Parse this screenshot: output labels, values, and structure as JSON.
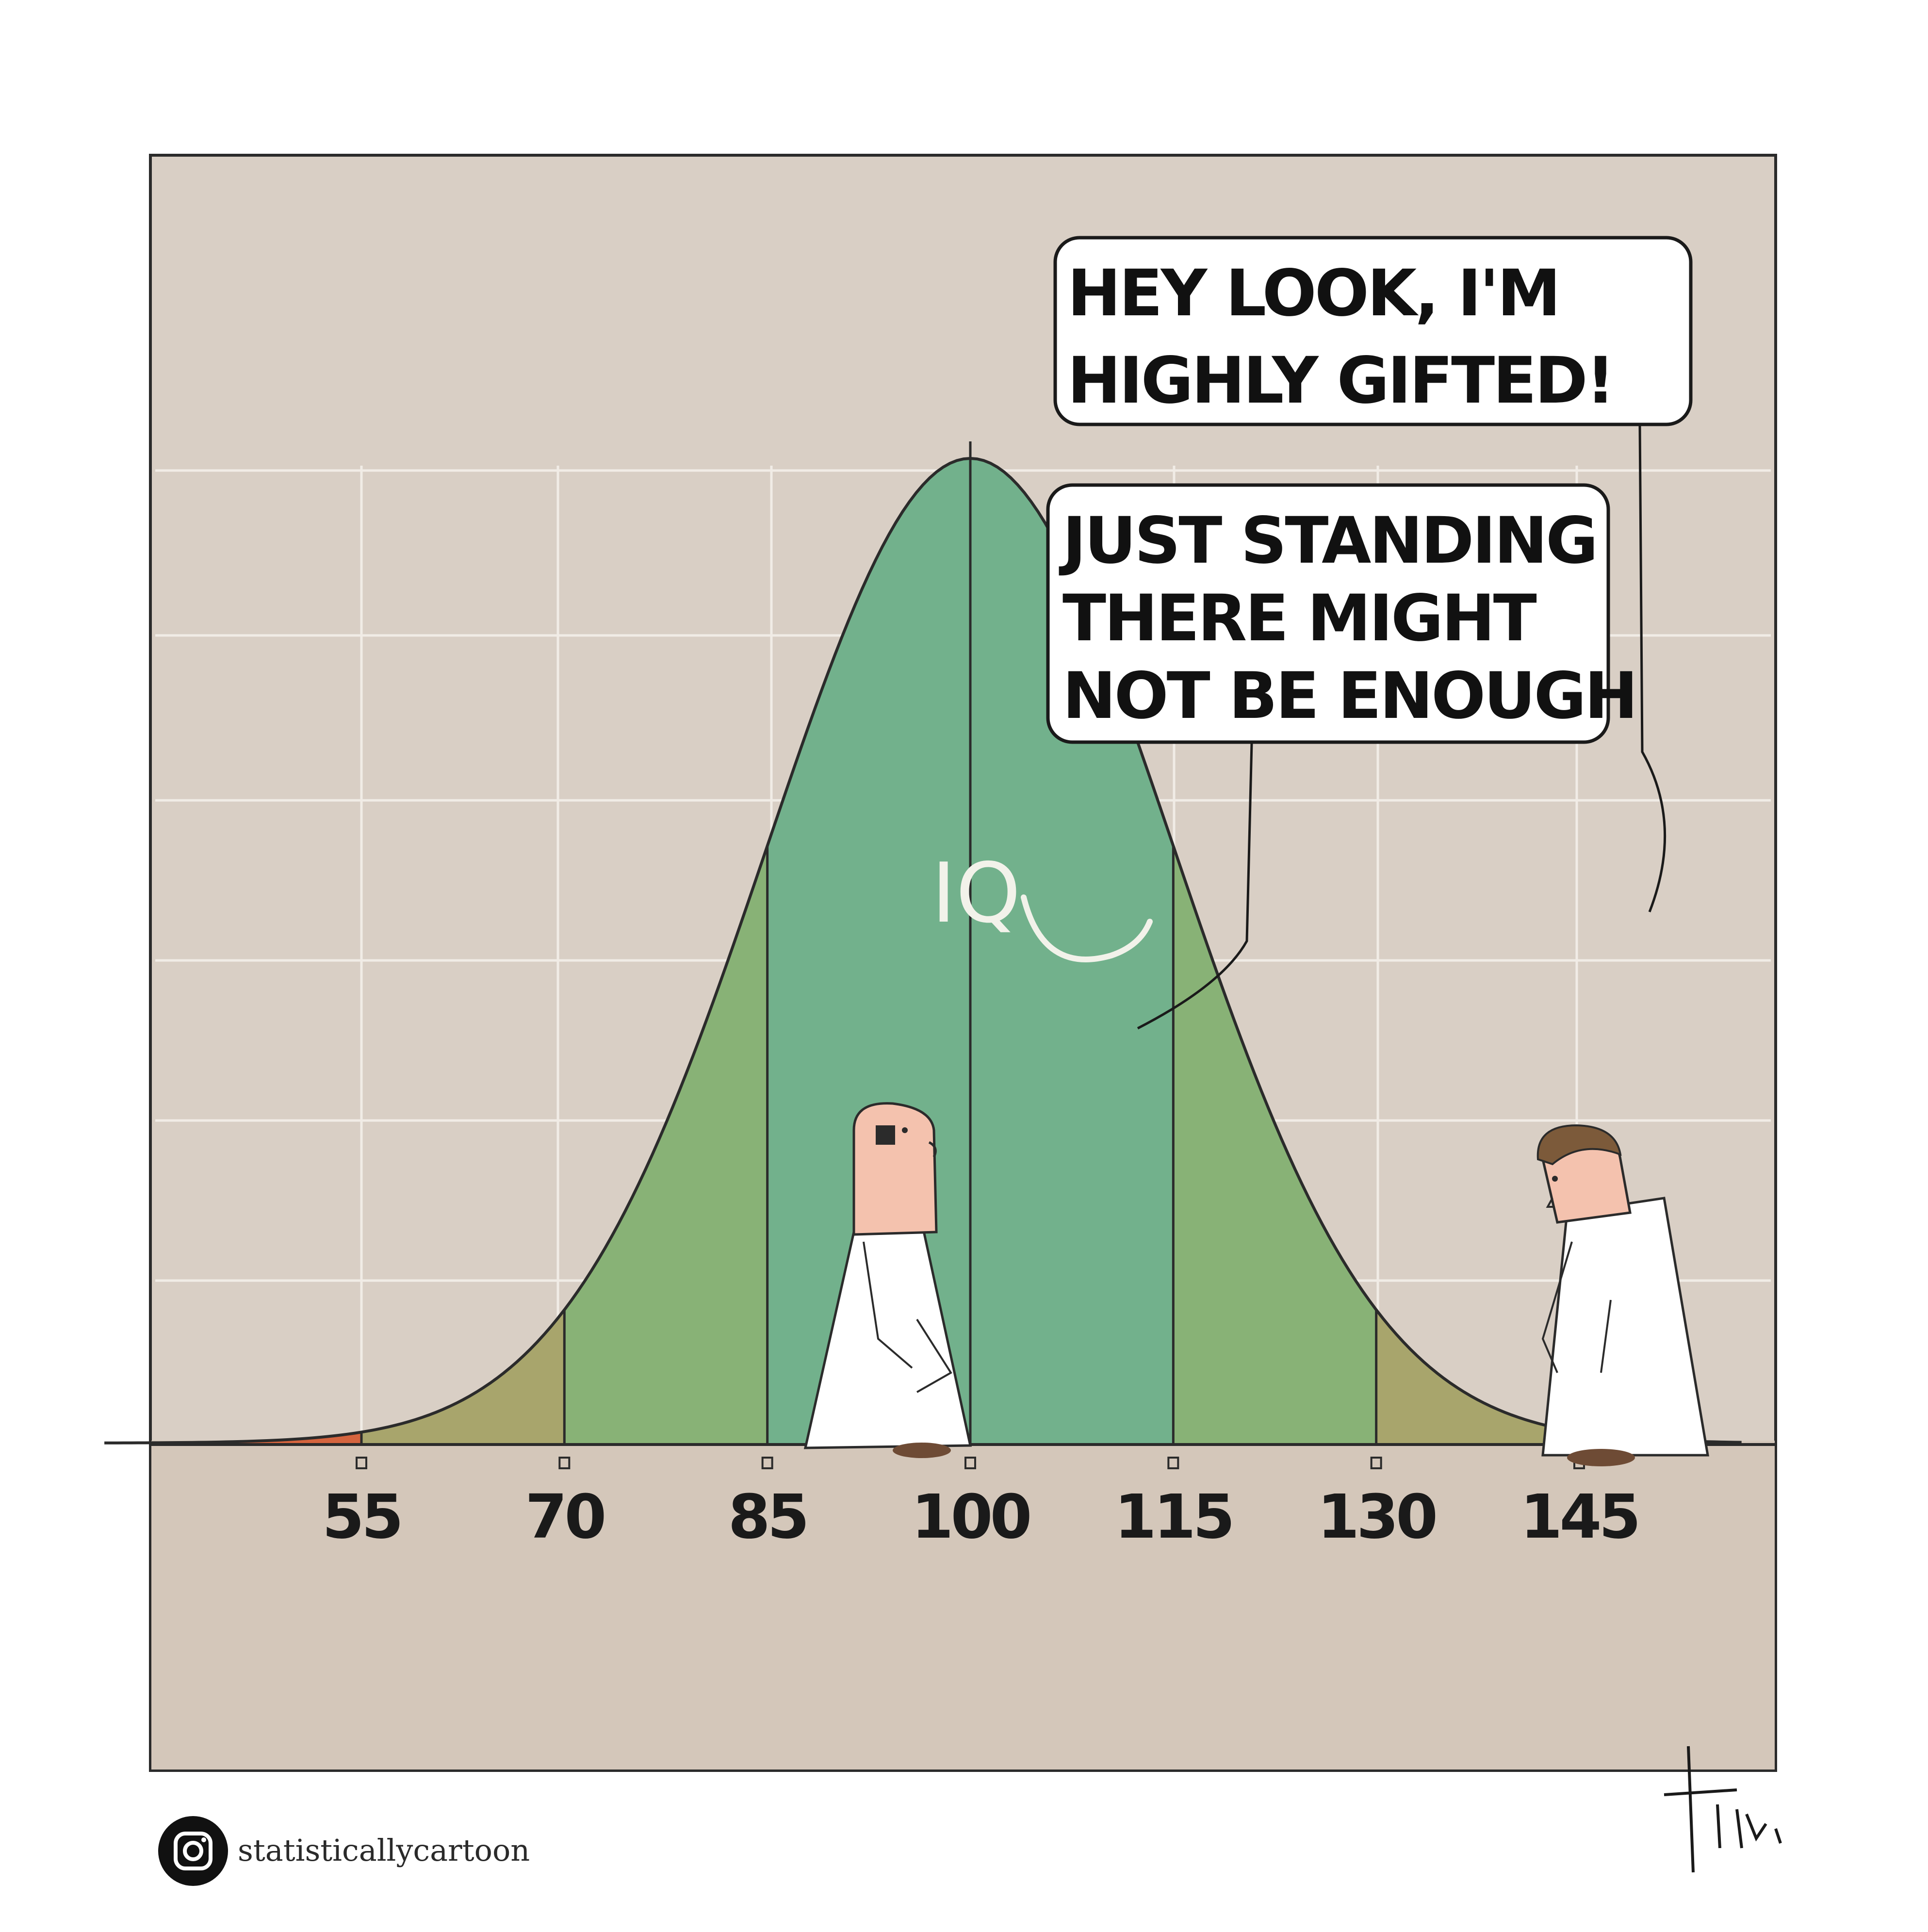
{
  "cartoon": {
    "bubble_top": {
      "lines": [
        "HEY LOOK, I'M",
        "HIGHLY GIFTED!"
      ]
    },
    "bubble_bottom": {
      "lines": [
        "JUST STANDING",
        "THERE MIGHT",
        "NOT BE ENOUGH"
      ]
    },
    "curve_label": "IQ",
    "social_handle": "statisticallycartoon",
    "social_icon": "instagram-icon",
    "colors": {
      "background_panel": "#d9cfc5",
      "grid_line": "#f3eee8",
      "core_band": "#72b18c",
      "middle_band": "#88b276",
      "outer_band": "#a8a56c",
      "extreme_tail": "#d5643e"
    }
  },
  "chart_data": {
    "type": "area",
    "ticks": [
      "55",
      "70",
      "85",
      "100",
      "115",
      "130",
      "145"
    ],
    "tick_values": [
      55,
      70,
      85,
      100,
      115,
      130,
      145
    ],
    "mean": 100,
    "sd": 15,
    "bands": [
      {
        "range": [
          85,
          115
        ],
        "color": "#72b18c"
      },
      {
        "range": [
          70,
          85
        ],
        "color": "#88b276"
      },
      {
        "range": [
          115,
          130
        ],
        "color": "#88b276"
      },
      {
        "range": [
          55,
          70
        ],
        "color": "#a8a56c"
      },
      {
        "range": [
          130,
          145
        ],
        "color": "#a8a56c"
      },
      {
        "range": [
          40,
          55
        ],
        "color": "#d5643e"
      },
      {
        "range": [
          145,
          160
        ],
        "color": "#d5643e"
      }
    ]
  }
}
